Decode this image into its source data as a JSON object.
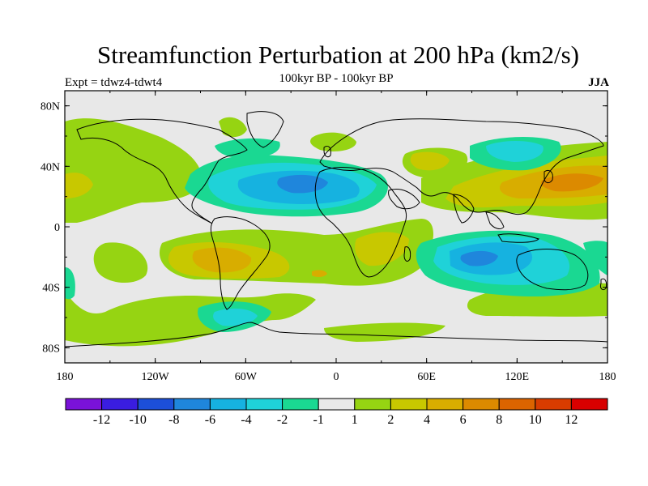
{
  "title": "Streamfunction Perturbation at 200 hPa (km2/s)",
  "subtitle": "100kyr BP - 100kyr BP",
  "experiment": "Expt = tdwz4-tdwt4",
  "season": "JJA",
  "map": {
    "lat_ticks": [
      "80N",
      "40N",
      "0",
      "40S",
      "80S"
    ],
    "lon_ticks": [
      "180",
      "120W",
      "60W",
      "0",
      "60E",
      "120E",
      "180"
    ]
  },
  "colorbar": {
    "labels": [
      "-12",
      "-10",
      "-8",
      "-6",
      "-4",
      "-2",
      "-1",
      "1",
      "2",
      "4",
      "6",
      "8",
      "10",
      "12"
    ],
    "colors": [
      "#7a12d8",
      "#3a1de0",
      "#1c4fd8",
      "#1f86dc",
      "#16b2e0",
      "#1fd2d8",
      "#1ad892",
      "#e8e8e8",
      "#96d412",
      "#c8c800",
      "#d8ad00",
      "#dc8a00",
      "#dc6400",
      "#d83c00",
      "#d80000"
    ]
  },
  "colors": {
    "land_outline": "#000000",
    "neutral": "#e8e8e8"
  }
}
